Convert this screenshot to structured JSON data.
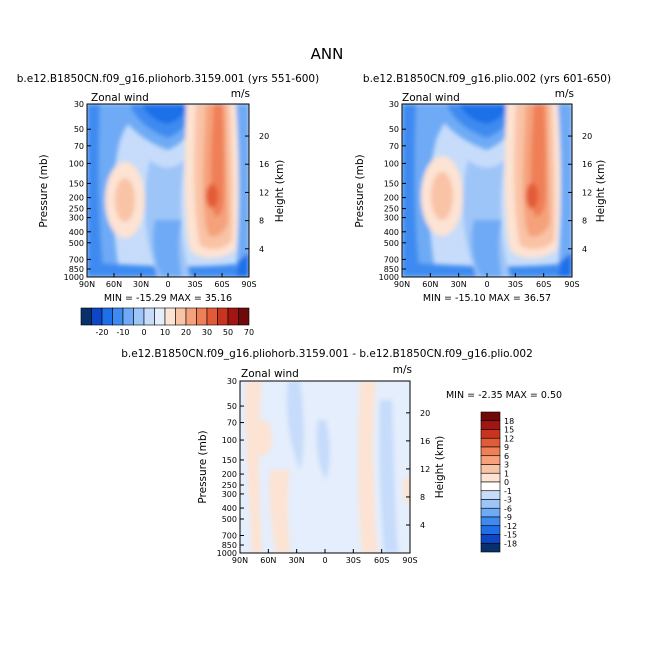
{
  "page_title": "ANN",
  "chart_data": [
    {
      "type": "contour",
      "id": "p1",
      "title": "b.e12.B1850CN.f09_g16.pliohorb.3159.001 (yrs 551-600)",
      "left_label": "Zonal wind",
      "units": "m/s",
      "ylabel": "Pressure (mb)",
      "ylabel_right": "Height (km)",
      "x_ticks": [
        "90N",
        "60N",
        "30N",
        "0",
        "30S",
        "60S",
        "90S"
      ],
      "p_ticks": [
        "30",
        "50",
        "70",
        "100",
        "150",
        "200",
        "250",
        "300",
        "400",
        "500",
        "700",
        "850",
        "1000"
      ],
      "height_ticks": [
        "4",
        "8",
        "12",
        "16",
        "20"
      ],
      "stats": "MIN = -15.29   MAX =  35.16",
      "min": -15.29,
      "max": 35.16
    },
    {
      "type": "contour",
      "id": "p2",
      "title": "b.e12.B1850CN.f09_g16.plio.002 (yrs 601-650)",
      "left_label": "Zonal wind",
      "units": "m/s",
      "ylabel": "Pressure (mb)",
      "ylabel_right": "Height (km)",
      "x_ticks": [
        "90N",
        "60N",
        "30N",
        "0",
        "30S",
        "60S",
        "90S"
      ],
      "p_ticks": [
        "30",
        "50",
        "70",
        "100",
        "150",
        "200",
        "250",
        "300",
        "400",
        "500",
        "700",
        "850",
        "1000"
      ],
      "height_ticks": [
        "4",
        "8",
        "12",
        "16",
        "20"
      ],
      "stats": "MIN = -15.10   MAX =  36.57",
      "min": -15.1,
      "max": 36.57
    },
    {
      "type": "contour",
      "id": "p3",
      "title": "b.e12.B1850CN.f09_g16.pliohorb.3159.001 - b.e12.B1850CN.f09_g16.plio.002",
      "left_label": "Zonal wind",
      "units": "m/s",
      "ylabel": "Pressure (mb)",
      "ylabel_right": "Height (km)",
      "x_ticks": [
        "90N",
        "60N",
        "30N",
        "0",
        "30S",
        "60S",
        "90S"
      ],
      "p_ticks": [
        "30",
        "50",
        "70",
        "100",
        "150",
        "200",
        "250",
        "300",
        "400",
        "500",
        "700",
        "850",
        "1000"
      ],
      "height_ticks": [
        "4",
        "8",
        "12",
        "16",
        "20"
      ],
      "stats": "MIN =  -2.35   MAX =   0.50",
      "min": -2.35,
      "max": 0.5
    }
  ],
  "colorbar_top": {
    "labels": [
      "-20",
      "-10",
      "0",
      "10",
      "20",
      "30",
      "50",
      "70"
    ],
    "colors": [
      "#08306b",
      "#0d47c7",
      "#1f6fe8",
      "#3d8bf0",
      "#6eaaf5",
      "#9ec5f8",
      "#c6dcfa",
      "#e4eefc",
      "#fde3d3",
      "#f9c3a6",
      "#f5a27c",
      "#ef7f56",
      "#e25b37",
      "#c8341f",
      "#a11513",
      "#700a0a"
    ]
  },
  "colorbar_diff": {
    "labels": [
      "18",
      "15",
      "12",
      "9",
      "6",
      "3",
      "1",
      "0",
      "-1",
      "-3",
      "-6",
      "-9",
      "-12",
      "-15",
      "-18"
    ],
    "colors": [
      "#700a0a",
      "#a11513",
      "#c8341f",
      "#e25b37",
      "#ef7f56",
      "#f5a27c",
      "#f9c3a6",
      "#fde3d3",
      "#ffffff",
      "#c6dcfa",
      "#9ec5f8",
      "#6eaaf5",
      "#3d8bf0",
      "#1f6fe8",
      "#0d47c7",
      "#08306b"
    ]
  }
}
